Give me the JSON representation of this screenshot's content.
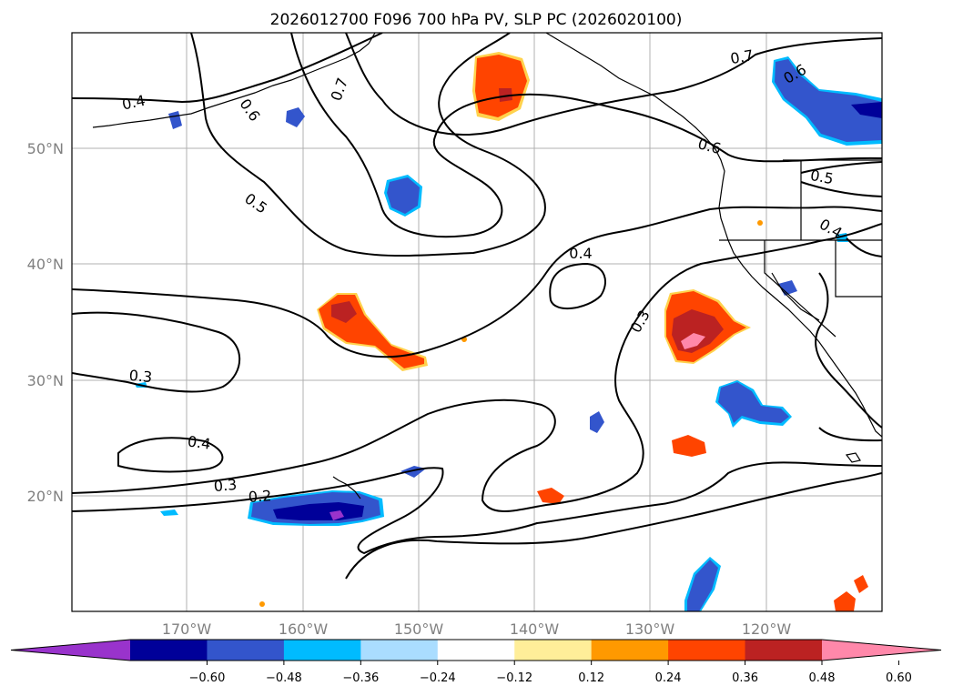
{
  "title": "2026012700 F096 700 hPa PV, SLP PC (2026020100)",
  "map": {
    "lon_ticks": [
      "170°W",
      "160°W",
      "150°W",
      "140°W",
      "130°W",
      "120°W"
    ],
    "lat_ticks": [
      "50°N",
      "40°N",
      "30°N",
      "20°N"
    ]
  },
  "colorbar": {
    "ticks": [
      "−0.60",
      "−0.48",
      "−0.36",
      "−0.24",
      "−0.12",
      "0.12",
      "0.24",
      "0.36",
      "0.48",
      "0.60"
    ],
    "colors": [
      "#9933cc",
      "#000099",
      "#3355cc",
      "#00bbff",
      "#aaddff",
      "#ffffff",
      "#ffee99",
      "#ff9900",
      "#ff4400",
      "#bb2222",
      "#ff88aa"
    ]
  },
  "contour_labels": [
    {
      "text": "0.4"
    },
    {
      "text": "0.6"
    },
    {
      "text": "0.7"
    },
    {
      "text": "0.5"
    },
    {
      "text": "0.4"
    },
    {
      "text": "0.3"
    },
    {
      "text": "0.3"
    },
    {
      "text": "0.4"
    },
    {
      "text": "0.3"
    },
    {
      "text": "0.2"
    },
    {
      "text": "0.7"
    },
    {
      "text": "0.6"
    },
    {
      "text": "0.6"
    },
    {
      "text": "0.5"
    },
    {
      "text": "0.4"
    }
  ]
}
